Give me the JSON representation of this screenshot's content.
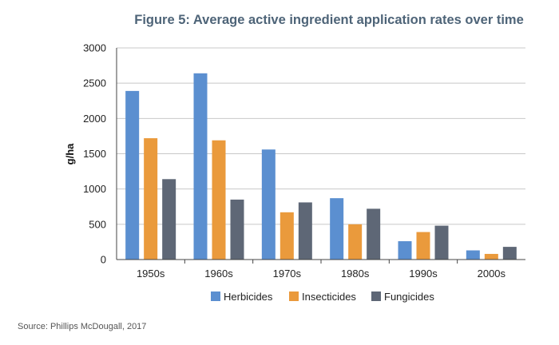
{
  "chart_data": {
    "type": "bar",
    "title": "Figure 5: Average active ingredient application rates over time",
    "xlabel": "",
    "ylabel": "g/ha",
    "ylim": [
      0,
      3000
    ],
    "yticks": [
      0,
      500,
      1000,
      1500,
      2000,
      2500,
      3000
    ],
    "categories": [
      "1950s",
      "1960s",
      "1970s",
      "1980s",
      "1990s",
      "2000s"
    ],
    "series": [
      {
        "name": "Herbicides",
        "color": "#5b8fd0",
        "values": [
          2390,
          2640,
          1560,
          870,
          260,
          130
        ]
      },
      {
        "name": "Insecticides",
        "color": "#ea9a3c",
        "values": [
          1720,
          1690,
          670,
          500,
          390,
          80
        ]
      },
      {
        "name": "Fungicides",
        "color": "#5e6776",
        "values": [
          1140,
          850,
          810,
          720,
          480,
          180
        ]
      }
    ],
    "grid": true,
    "legend_position": "bottom",
    "title_color": "#4e6478",
    "source": "Source: Phillips McDougall, 2017"
  }
}
